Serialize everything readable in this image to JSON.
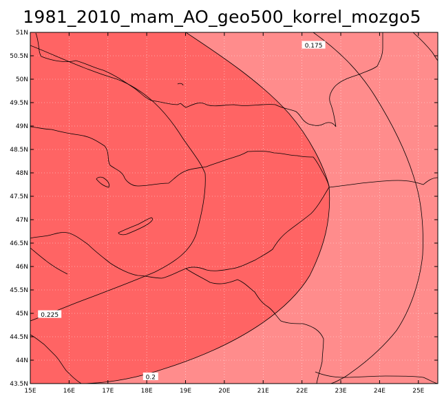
{
  "title": "1981_2010_mam_AO_geo500_korrel_mozgo5",
  "map": {
    "lon_range": [
      15,
      25.5
    ],
    "lat_range": [
      43.5,
      51
    ],
    "lon_ticks": [
      {
        "value": 15,
        "label": "15E"
      },
      {
        "value": 16,
        "label": "16E"
      },
      {
        "value": 17,
        "label": "17E"
      },
      {
        "value": 18,
        "label": "18E"
      },
      {
        "value": 19,
        "label": "19E"
      },
      {
        "value": 20,
        "label": "20E"
      },
      {
        "value": 21,
        "label": "21E"
      },
      {
        "value": 22,
        "label": "22E"
      },
      {
        "value": 23,
        "label": "23E"
      },
      {
        "value": 24,
        "label": "24E"
      },
      {
        "value": 25,
        "label": "25E"
      }
    ],
    "lat_ticks": [
      {
        "value": 43.5,
        "label": "43.5N"
      },
      {
        "value": 44,
        "label": "44N"
      },
      {
        "value": 44.5,
        "label": "44.5N"
      },
      {
        "value": 45,
        "label": "45N"
      },
      {
        "value": 45.5,
        "label": "45.5N"
      },
      {
        "value": 46,
        "label": "46N"
      },
      {
        "value": 46.5,
        "label": "46.5N"
      },
      {
        "value": 47,
        "label": "47N"
      },
      {
        "value": 47.5,
        "label": "47.5N"
      },
      {
        "value": 48,
        "label": "48N"
      },
      {
        "value": 48.5,
        "label": "48.5N"
      },
      {
        "value": 49,
        "label": "49N"
      },
      {
        "value": 49.5,
        "label": "49.5N"
      },
      {
        "value": 50,
        "label": "50N"
      },
      {
        "value": 50.5,
        "label": "50.5N"
      },
      {
        "value": 51,
        "label": "51N"
      }
    ],
    "grid": true,
    "colors": {
      "high_fill": "#ff6464",
      "low_fill": "#ff8c8c",
      "grid": "#ffffff",
      "lines": "#000000"
    },
    "contour_labels": [
      {
        "text": "0.175",
        "lon": 22.3,
        "lat": 50.72
      },
      {
        "text": "0.225",
        "lon": 15.5,
        "lat": 44.97
      },
      {
        "text": "0.2",
        "lon": 18.1,
        "lat": 43.64
      }
    ]
  }
}
